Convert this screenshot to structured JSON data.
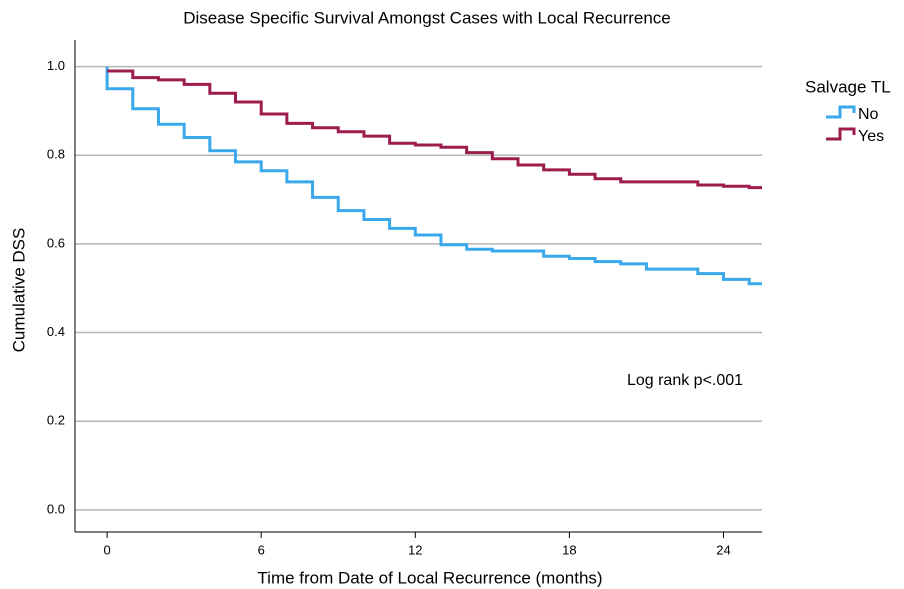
{
  "chart_data": {
    "type": "step",
    "title": "Disease Specific Survival Amongst Cases with Local Recurrence",
    "x_label": "Time from Date of Local Recurrence (months)",
    "y_label": "Cumulative DSS",
    "annotation": "Log rank p<.001",
    "legend_title": "Salvage TL",
    "legend_position": "upper right outside",
    "grid": true,
    "xlim": [
      -1.25,
      25.5
    ],
    "ylim": [
      -0.05,
      1.06
    ],
    "xticks": [
      0,
      6,
      12,
      18,
      24
    ],
    "yticks": [
      {
        "value": 0,
        "label": "0.0"
      },
      {
        "value": 0.2,
        "label": "0.2"
      },
      {
        "value": 0.4,
        "label": "0.4"
      },
      {
        "value": 0.6,
        "label": "0.6"
      },
      {
        "value": 0.8,
        "label": "0.8"
      },
      {
        "value": 1,
        "label": "1.0"
      }
    ],
    "series": [
      {
        "name": "No",
        "color": "#3aa8eb",
        "x": [
          0,
          0,
          1,
          2,
          3,
          4,
          5,
          6,
          7,
          8,
          9,
          10,
          11,
          12,
          13,
          14,
          15,
          17,
          18,
          19,
          20,
          21,
          23,
          24,
          25,
          25.5
        ],
        "values": [
          1.0,
          0.95,
          0.905,
          0.87,
          0.84,
          0.81,
          0.785,
          0.765,
          0.74,
          0.705,
          0.675,
          0.655,
          0.635,
          0.62,
          0.598,
          0.588,
          0.584,
          0.572,
          0.567,
          0.56,
          0.555,
          0.543,
          0.533,
          0.52,
          0.51,
          0.51
        ]
      },
      {
        "name": "Yes",
        "color": "#9b1c4d",
        "x": [
          0,
          1,
          2,
          3,
          4,
          5,
          6,
          7,
          8,
          9,
          10,
          11,
          12,
          13,
          14,
          15,
          16,
          17,
          18,
          19,
          20,
          23,
          24,
          25,
          25.5
        ],
        "values": [
          0.99,
          0.975,
          0.97,
          0.96,
          0.94,
          0.92,
          0.893,
          0.872,
          0.862,
          0.853,
          0.843,
          0.827,
          0.823,
          0.818,
          0.806,
          0.792,
          0.778,
          0.767,
          0.757,
          0.747,
          0.74,
          0.733,
          0.73,
          0.727,
          0.727
        ]
      }
    ]
  }
}
